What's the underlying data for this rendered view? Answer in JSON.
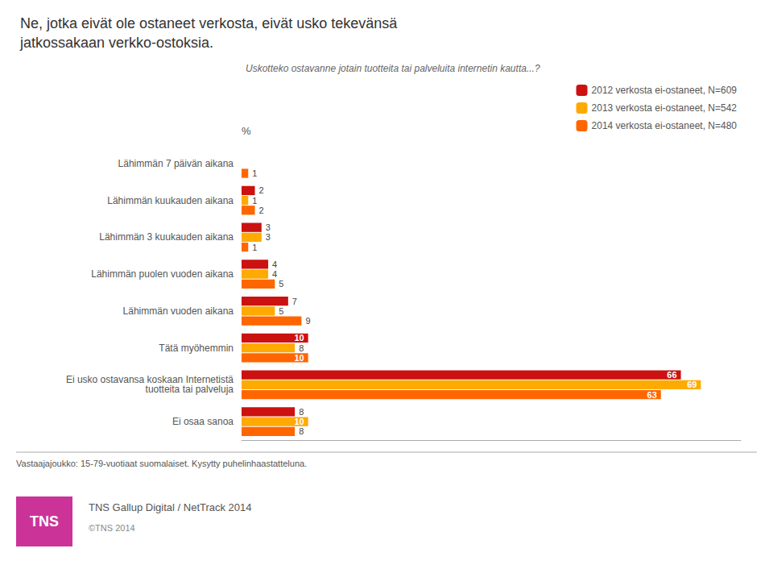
{
  "chart_data": {
    "type": "bar",
    "orientation": "horizontal",
    "title": "Ne, jotka eivät ole ostaneet verkosta, eivät usko tekevänsä\njatkossakaan verkko-ostoksia.",
    "subtitle": "Uskotteko ostavanne jotain tuotteita tai palveluita internetin kautta...?",
    "xlabel": "%",
    "categories": [
      "Lähimmän 7 päivän aikana",
      "Lähimmän kuukauden aikana",
      "Lähimmän 3 kuukauden aikana",
      "Lähimmän puolen vuoden aikana",
      "Lähimmän vuoden aikana",
      "Tätä myöhemmin",
      "Ei usko ostavansa koskaan Internetistä\ntuotteita tai palveluja",
      "Ei osaa sanoa"
    ],
    "series": [
      {
        "name": "2012 verkosta ei-ostaneet, N=609",
        "color": "#cc1111",
        "values": [
          0,
          2,
          3,
          4,
          7,
          10,
          66,
          8
        ],
        "value_labels": [
          null,
          "2",
          "3",
          "4",
          "7",
          "10",
          "66",
          "8"
        ]
      },
      {
        "name": "2013 verkosta ei-ostaneet, N=542",
        "color": "#ffaa00",
        "values": [
          0,
          1,
          3,
          4,
          5,
          8,
          69,
          10
        ],
        "value_labels": [
          null,
          "1",
          "3",
          "4",
          "5",
          "8",
          "69",
          "10"
        ]
      },
      {
        "name": "2014 verkosta ei-ostaneet, N=480",
        "color": "#ff6600",
        "values": [
          1,
          2,
          1,
          5,
          9,
          10,
          63,
          8
        ],
        "value_labels": [
          "1",
          "2",
          "1",
          "5",
          "9",
          "10",
          "63",
          "8"
        ]
      }
    ],
    "xlim": [
      0,
      75
    ],
    "data_labels": true,
    "tick_labels": "y",
    "grid": false,
    "legend": "upper right",
    "annotations": [
      {
        "text": "Vastaajajoukko: 15-79-vuotiaat suomalaiset. Kysytty puhelinhaastatteluna."
      },
      {
        "text": "TNS Gallup Digital / NetTrack 2014"
      },
      {
        "text": "©TNS 2014"
      },
      {
        "text": "TNS",
        "color": "#cc3399"
      }
    ]
  }
}
